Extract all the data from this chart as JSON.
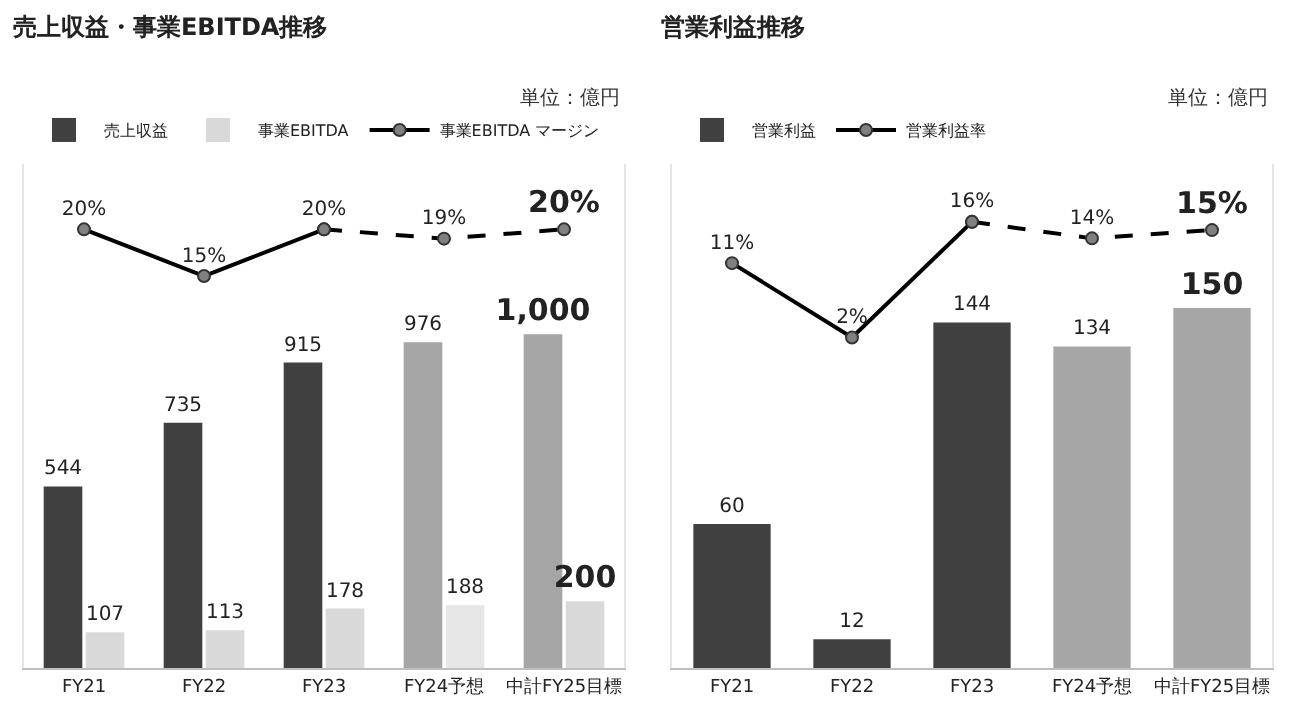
{
  "chart_data": [
    {
      "type": "bar",
      "title": "売上収益・事業EBITDA推移",
      "annotations": [
        "単位：億円"
      ],
      "categories": [
        "FY21",
        "FY22",
        "FY23",
        "FY24予想",
        "中計FY25目標"
      ],
      "ylim": [
        0,
        1510
      ],
      "y2lim": [
        -27,
        27
      ],
      "tick_labels": "x",
      "grid": false,
      "legend": "top left",
      "marker": "circle",
      "series": [
        {
          "name": "売上収益",
          "colors": [
            "#404040",
            "#404040",
            "#404040",
            "#a6a6a6",
            "#a6a6a6"
          ],
          "values": [
            544,
            735,
            915,
            976,
            1000
          ],
          "value_labels": [
            "544",
            "735",
            "915",
            "976",
            "1,000"
          ]
        },
        {
          "name": "事業EBITDA",
          "colors": [
            "#d9d9d9",
            "#d9d9d9",
            "#d9d9d9",
            "#e7e6e6",
            "#d9d9d9"
          ],
          "values": [
            107,
            113,
            178,
            188,
            200
          ],
          "value_labels": [
            "107",
            "113",
            "178",
            "188",
            "200"
          ]
        },
        {
          "name": "事業EBITDA マージン",
          "type": "line",
          "axis": "y2",
          "color": "#000000",
          "line_style": "solid",
          "values": [
            20,
            15,
            20,
            null,
            null
          ],
          "value_labels": [
            "20%",
            "15%",
            "20%",
            null,
            null
          ]
        },
        {
          "type": "line",
          "axis": "y2",
          "color": "#000000",
          "line_style": "dashed",
          "values": [
            null,
            null,
            20,
            19,
            20
          ],
          "value_labels": [
            null,
            null,
            null,
            "19%",
            "20%"
          ]
        }
      ]
    },
    {
      "type": "bar",
      "title": "営業利益推移",
      "annotations": [
        "単位：億円"
      ],
      "categories": [
        "FY21",
        "FY22",
        "FY23",
        "FY24予想",
        "中計FY25目標"
      ],
      "ylim": [
        0,
        210
      ],
      "y2lim": [
        -38,
        23
      ],
      "tick_labels": "x",
      "grid": false,
      "legend": "top left",
      "marker": "circle",
      "series": [
        {
          "name": "営業利益",
          "colors": [
            "#404040",
            "#404040",
            "#404040",
            "#a6a6a6",
            "#a6a6a6"
          ],
          "values": [
            60,
            12,
            144,
            134,
            150
          ],
          "value_labels": [
            "60",
            "12",
            "144",
            "134",
            "150"
          ]
        },
        {
          "name": "営業利益率",
          "type": "line",
          "axis": "y2",
          "color": "#000000",
          "line_style": "solid",
          "values": [
            11,
            2,
            16,
            null,
            null
          ],
          "value_labels": [
            "11%",
            "2%",
            "16%",
            null,
            null
          ]
        },
        {
          "type": "line",
          "axis": "y2",
          "color": "#000000",
          "line_style": "dashed",
          "values": [
            null,
            null,
            16,
            14,
            15
          ],
          "value_labels": [
            null,
            null,
            null,
            "14%",
            "15%"
          ]
        }
      ]
    }
  ]
}
